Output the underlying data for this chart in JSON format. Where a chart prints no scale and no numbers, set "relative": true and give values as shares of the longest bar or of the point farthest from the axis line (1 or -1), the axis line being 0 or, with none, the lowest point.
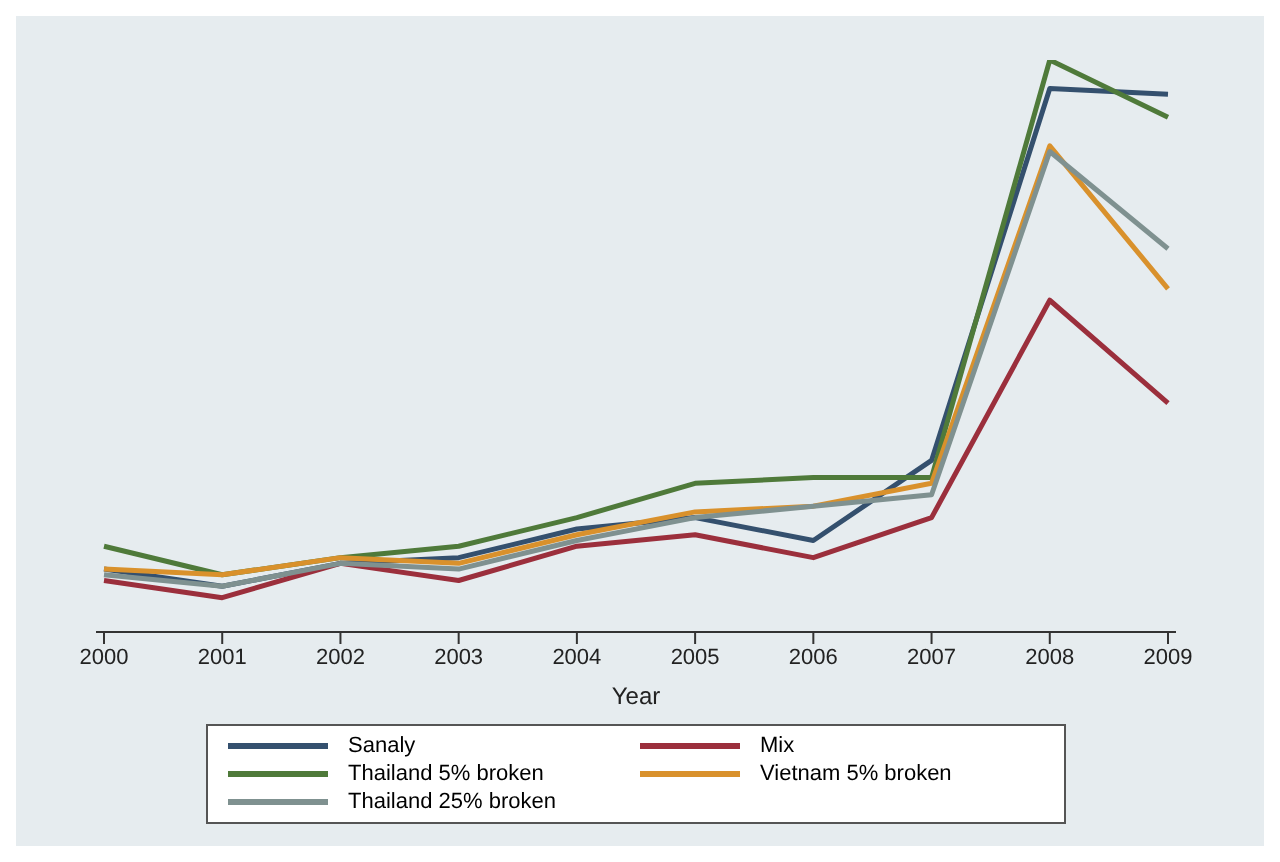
{
  "chart_data": {
    "type": "line",
    "relative": true,
    "xlabel": "Year",
    "legend": "bottom",
    "marker": "none",
    "line_style": "solid",
    "categories": [
      "2000",
      "2001",
      "2002",
      "2003",
      "2004",
      "2005",
      "2006",
      "2007",
      "2008",
      "2009"
    ],
    "series": [
      {
        "name": "Sanaly",
        "color": "#34506e",
        "values": [
          0.11,
          0.08,
          0.12,
          0.13,
          0.18,
          0.2,
          0.16,
          0.3,
          0.95,
          0.94
        ]
      },
      {
        "name": "Mix",
        "color": "#9b2f3c",
        "values": [
          0.09,
          0.06,
          0.12,
          0.09,
          0.15,
          0.17,
          0.13,
          0.2,
          0.58,
          0.4
        ]
      },
      {
        "name": "Thailand 5% broken",
        "color": "#4f7a3a",
        "values": [
          0.15,
          0.1,
          0.13,
          0.15,
          0.2,
          0.26,
          0.27,
          0.27,
          1,
          0.9
        ]
      },
      {
        "name": "Vietnam 5% broken",
        "color": "#d9912c",
        "values": [
          0.11,
          0.1,
          0.13,
          0.12,
          0.17,
          0.21,
          0.22,
          0.26,
          0.85,
          0.6
        ]
      },
      {
        "name": "Thailand 25% broken",
        "color": "#7f9190",
        "values": [
          0.1,
          0.08,
          0.12,
          0.11,
          0.16,
          0.2,
          0.22,
          0.24,
          0.84,
          0.67
        ]
      }
    ]
  }
}
